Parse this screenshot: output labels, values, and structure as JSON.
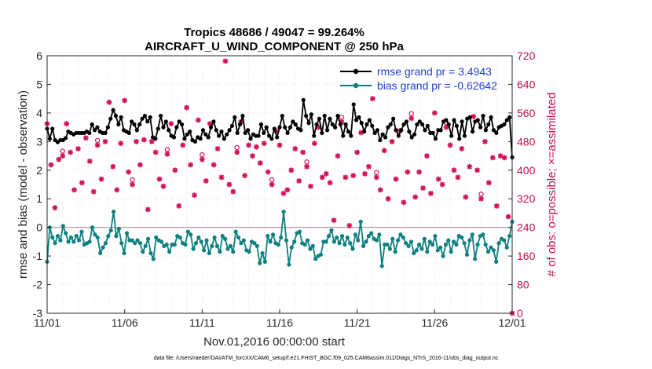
{
  "chart_data": {
    "type": "line",
    "title_line1": "Tropics 48686 / 49047 = 99.264%",
    "title_line2": "AIRCRAFT_U_WIND_COMPONENT @ 250 hPa",
    "xlabel": "Nov.01,2016 00:00:00 start",
    "ylabel_left": "rmse and bias (model - observation)",
    "ylabel_right": "# of obs: o=possible; ×=assimilated",
    "footer": "data file: /Users/raeder/DAI/ATM_forcXX/CAM6_setup/f.e21.FHIST_BGC.f09_025.CAM6assim.011/Diags_NTrS_2016-11/obs_diag_output.nc",
    "x_tick_labels": [
      "11/01",
      "11/06",
      "11/11",
      "11/16",
      "11/21",
      "11/26",
      "12/01"
    ],
    "x_tick_days": [
      0,
      5,
      10,
      15,
      20,
      25,
      30
    ],
    "xlim": [
      0,
      30
    ],
    "ylim_left": [
      -3,
      6
    ],
    "yticks_left": [
      "-3",
      "-2",
      "-1",
      "0",
      "1",
      "2",
      "3",
      "4",
      "5",
      "6"
    ],
    "ylim_right": [
      0,
      720
    ],
    "yticks_right": [
      "0",
      "80",
      "160",
      "240",
      "320",
      "400",
      "480",
      "560",
      "640",
      "720"
    ],
    "colors": {
      "rmse": "#000000",
      "bias": "#0d8080",
      "obs": "#d1105a",
      "zero_line": "#c0a8a8",
      "grid": "#e6dada"
    },
    "series": [
      {
        "name": "rmse grand pr = 3.4943",
        "axis": "left",
        "values": [
          3.45,
          3.1,
          3.45,
          3.05,
          2.98,
          3.05,
          3.05,
          3.12,
          3.35,
          3.3,
          3.25,
          3.3,
          3.3,
          3.3,
          3.3,
          3.35,
          3.3,
          3.6,
          3.4,
          3.5,
          3.35,
          3.3,
          3.3,
          3.5,
          3.8,
          4.1,
          3.9,
          3.6,
          3.85,
          3.4,
          3.35,
          3.3,
          3.7,
          3.6,
          3.4,
          3.6,
          3.8,
          3.9,
          3.7,
          3.85,
          3.15,
          3.1,
          3.45,
          3.9,
          3.5,
          3.7,
          3.4,
          3.2,
          3.15,
          3.5,
          3.7,
          3.6,
          3.1,
          3.25,
          3.35,
          3.05,
          3.0,
          3.15,
          3.1,
          3.4,
          3.25,
          3.15,
          3.5,
          3.7,
          3.4,
          3.2,
          3.35,
          3.1,
          3.25,
          3.4,
          3.55,
          3.85,
          3.3,
          3.6,
          3.9,
          3.3,
          3.4,
          3.1,
          3.25,
          3.2,
          3.2,
          3.6,
          3.3,
          3.5,
          3.2,
          3.1,
          3.45,
          3.15,
          3.5,
          3.9,
          3.5,
          3.3,
          3.5,
          3.7,
          3.6,
          3.45,
          3.4,
          4.45,
          3.9,
          3.65,
          3.95,
          3.2,
          3.6,
          3.8,
          3.3,
          3.9,
          3.4,
          3.8,
          3.6,
          3.5,
          3.9,
          3.6,
          3.2,
          3.6,
          3.35,
          3.2,
          4.3,
          3.75,
          3.85,
          3.65,
          3.35,
          3.6,
          3.75,
          3.55,
          3.3,
          3.4,
          3.05,
          3.25,
          3.15,
          3.5,
          3.6,
          3.8,
          3.4,
          3.2,
          3.4,
          3.6,
          3.7,
          3.35,
          3.15,
          3.25,
          3.6,
          3.7,
          3.6,
          3.4,
          3.55,
          3.3,
          3.3,
          3.1,
          3.4,
          3.4,
          3.7,
          3.75,
          3.6,
          3.2,
          3.75,
          3.55,
          3.1,
          3.7,
          3.2,
          3.8,
          3.85,
          3.35,
          3.7,
          3.75,
          3.5,
          3.9,
          3.4,
          3.6,
          3.85,
          3.4,
          3.3,
          3.5,
          3.55,
          3.6,
          3.75,
          3.85,
          2.45
        ]
      },
      {
        "name": "bias grand pr = -0.62642",
        "axis": "left",
        "values": [
          -1.2,
          0.0,
          -0.35,
          -0.55,
          -0.3,
          -0.45,
          0.05,
          -0.2,
          -0.5,
          -0.35,
          -0.5,
          -0.3,
          -0.45,
          -0.15,
          -0.6,
          -0.55,
          -0.5,
          0.0,
          -0.25,
          -0.35,
          -0.9,
          -0.7,
          -0.55,
          -0.3,
          -0.1,
          0.55,
          -0.3,
          -0.05,
          -0.55,
          -0.9,
          -0.2,
          -0.45,
          -0.45,
          -0.55,
          -0.45,
          -0.55,
          -0.85,
          -0.65,
          -0.4,
          -0.9,
          -1.1,
          -0.35,
          -0.45,
          -0.5,
          -0.65,
          -0.6,
          -0.85,
          -0.6,
          -0.6,
          -0.3,
          -0.35,
          -0.55,
          -0.6,
          -0.15,
          -0.25,
          -0.75,
          -0.55,
          -0.35,
          -0.5,
          -0.8,
          -0.45,
          -0.9,
          -0.65,
          -0.35,
          -0.65,
          -0.85,
          -0.3,
          -0.4,
          -0.75,
          -0.65,
          -0.85,
          -0.15,
          -0.35,
          -0.55,
          -0.45,
          -0.8,
          -0.85,
          -0.5,
          -0.55,
          -0.65,
          -1.25,
          -0.9,
          -1.2,
          -0.3,
          -0.5,
          -0.25,
          -0.55,
          -0.6,
          -0.35,
          0.55,
          -0.45,
          -1.3,
          -0.7,
          -0.5,
          -0.2,
          -0.15,
          -0.55,
          -0.6,
          -0.45,
          -0.75,
          -0.65,
          -1.1,
          -1.0,
          -0.95,
          -0.5,
          -0.5,
          -0.3,
          -0.1,
          -0.5,
          -0.35,
          -0.55,
          -0.3,
          -0.6,
          -0.35,
          -0.55,
          -0.75,
          -0.25,
          -0.45,
          0.2,
          -0.65,
          -0.5,
          -0.3,
          -0.2,
          -0.4,
          -0.45,
          -0.25,
          -1.35,
          -0.6,
          -0.6,
          -0.75,
          -0.4,
          -0.85,
          -0.45,
          -0.25,
          -0.35,
          -0.55,
          -0.65,
          -0.5,
          -0.9,
          -0.8,
          -0.6,
          -0.75,
          -0.4,
          -0.85,
          -0.5,
          -0.6,
          -0.3,
          -0.8,
          -0.7,
          -1.0,
          -0.6,
          -0.45,
          -0.85,
          -0.5,
          -0.6,
          -0.3,
          -0.35,
          -0.55,
          -0.95,
          -0.45,
          -0.25,
          -1.1,
          -0.6,
          -0.3,
          -0.25,
          -0.6,
          -0.85,
          -0.7,
          -0.8,
          -1.2,
          -0.55,
          -0.4,
          -0.45,
          -0.7,
          -0.3,
          0.2
        ]
      }
    ],
    "obs_points": [
      [
        0.0,
        530
      ],
      [
        0.25,
        415
      ],
      [
        0.5,
        295
      ],
      [
        0.75,
        430
      ],
      [
        1.0,
        440
      ],
      [
        1.25,
        530
      ],
      [
        1.5,
        450
      ],
      [
        1.75,
        345
      ],
      [
        2.0,
        460
      ],
      [
        2.25,
        365
      ],
      [
        2.5,
        490
      ],
      [
        2.75,
        425
      ],
      [
        3.0,
        340
      ],
      [
        3.25,
        470
      ],
      [
        3.5,
        375
      ],
      [
        3.75,
        480
      ],
      [
        4.0,
        590
      ],
      [
        4.25,
        410
      ],
      [
        4.5,
        345
      ],
      [
        4.75,
        475
      ],
      [
        5.0,
        595
      ],
      [
        5.25,
        395
      ],
      [
        5.5,
        360
      ],
      [
        5.75,
        480
      ],
      [
        6.0,
        415
      ],
      [
        6.25,
        485
      ],
      [
        6.5,
        290
      ],
      [
        6.75,
        480
      ],
      [
        7.0,
        450
      ],
      [
        7.25,
        375
      ],
      [
        7.5,
        355
      ],
      [
        7.75,
        445
      ],
      [
        8.0,
        530
      ],
      [
        8.25,
        400
      ],
      [
        8.5,
        300
      ],
      [
        8.75,
        470
      ],
      [
        9.0,
        575
      ],
      [
        9.25,
        415
      ],
      [
        9.5,
        330
      ],
      [
        9.75,
        540
      ],
      [
        10.0,
        430
      ],
      [
        10.25,
        370
      ],
      [
        10.5,
        530
      ],
      [
        10.75,
        415
      ],
      [
        11.0,
        460
      ],
      [
        11.25,
        380
      ],
      [
        11.5,
        705
      ],
      [
        11.75,
        360
      ],
      [
        12.0,
        340
      ],
      [
        12.25,
        450
      ],
      [
        12.5,
        535
      ],
      [
        12.75,
        385
      ],
      [
        13.0,
        470
      ],
      [
        13.25,
        440
      ],
      [
        13.5,
        465
      ],
      [
        13.75,
        420
      ],
      [
        14.0,
        475
      ],
      [
        14.25,
        395
      ],
      [
        14.5,
        360
      ],
      [
        14.75,
        510
      ],
      [
        15.0,
        470
      ],
      [
        15.25,
        335
      ],
      [
        15.5,
        345
      ],
      [
        15.75,
        400
      ],
      [
        16.0,
        460
      ],
      [
        16.25,
        370
      ],
      [
        16.5,
        450
      ],
      [
        16.75,
        410
      ],
      [
        17.0,
        355
      ],
      [
        17.25,
        475
      ],
      [
        17.5,
        520
      ],
      [
        17.75,
        380
      ],
      [
        18.0,
        390
      ],
      [
        18.25,
        365
      ],
      [
        18.5,
        260
      ],
      [
        18.75,
        440
      ],
      [
        19.0,
        535
      ],
      [
        19.25,
        380
      ],
      [
        19.5,
        245
      ],
      [
        19.75,
        385
      ],
      [
        20.0,
        450
      ],
      [
        20.25,
        505
      ],
      [
        20.5,
        390
      ],
      [
        20.75,
        410
      ],
      [
        21.0,
        600
      ],
      [
        21.25,
        380
      ],
      [
        21.5,
        345
      ],
      [
        21.75,
        455
      ],
      [
        22.0,
        320
      ],
      [
        22.25,
        480
      ],
      [
        22.5,
        375
      ],
      [
        22.75,
        510
      ],
      [
        23.0,
        310
      ],
      [
        23.25,
        395
      ],
      [
        23.5,
        545
      ],
      [
        23.75,
        325
      ],
      [
        24.0,
        395
      ],
      [
        24.25,
        350
      ],
      [
        24.5,
        440
      ],
      [
        24.75,
        335
      ],
      [
        25.0,
        560
      ],
      [
        25.25,
        375
      ],
      [
        25.5,
        360
      ],
      [
        25.75,
        520
      ],
      [
        26.0,
        470
      ],
      [
        26.25,
        400
      ],
      [
        26.5,
        380
      ],
      [
        26.75,
        460
      ],
      [
        27.0,
        325
      ],
      [
        27.25,
        410
      ],
      [
        27.5,
        550
      ],
      [
        27.75,
        400
      ],
      [
        28.0,
        320
      ],
      [
        28.25,
        480
      ],
      [
        28.5,
        365
      ],
      [
        28.75,
        435
      ],
      [
        29.0,
        300
      ],
      [
        29.25,
        440
      ],
      [
        29.5,
        435
      ],
      [
        29.75,
        270
      ],
      [
        30.0,
        0
      ]
    ]
  }
}
